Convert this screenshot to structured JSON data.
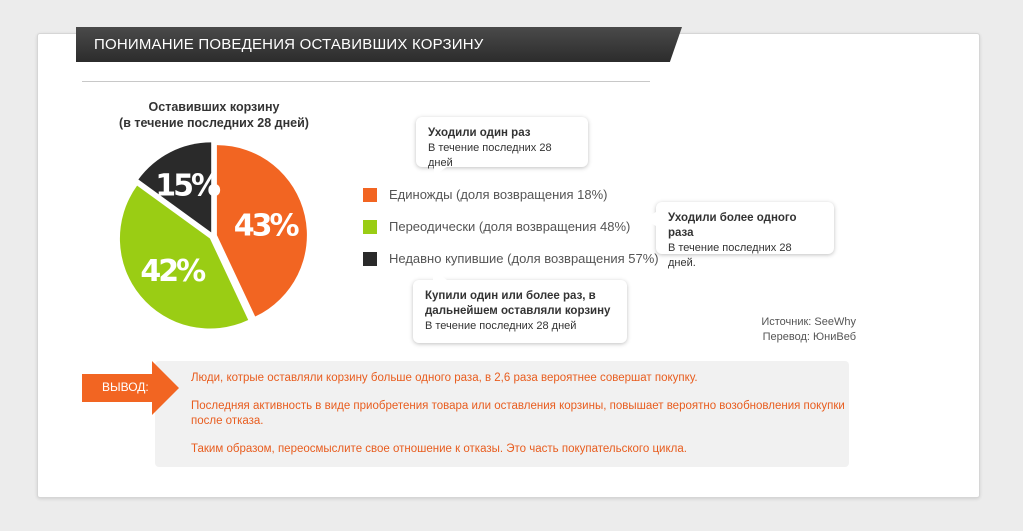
{
  "header": {
    "title": "ПОНИМАНИЕ ПОВЕДЕНИЯ ОСТАВИВШИХ КОРЗИНУ"
  },
  "chart_data": {
    "type": "pie",
    "title": "Оставивших корзину",
    "subtitle": "(в течение последних 28 дней)",
    "slices": [
      {
        "name": "Единожды (доля возвращения 18%)",
        "value": 43,
        "label": "43%",
        "color": "#f26522"
      },
      {
        "name": "Переодически (доля возвращения 48%)",
        "value": 42,
        "label": "42%",
        "color": "#9acd14"
      },
      {
        "name": "Недавно купившие (доля возвращения 57%)",
        "value": 15,
        "label": "15%",
        "color": "#2a2a2a"
      }
    ],
    "legend_position": "right"
  },
  "callouts": [
    {
      "title": "Уходили один раз",
      "text": "В течение последних 28 дней"
    },
    {
      "title": "Уходили более одного раза",
      "text": "В течение последних 28 дней."
    },
    {
      "title": "Купили один или более раз, в дальнейшем оставляли корзину",
      "text": "В течение последних 28 дней"
    }
  ],
  "source": {
    "line1": "Источник: SeeWhy",
    "line2": "Перевод: ЮниВеб"
  },
  "conclusion": {
    "label": "ВЫВОД:",
    "color": "#f26522",
    "paragraphs": [
      "Люди, котрые оставляли корзину больше одного раза, в 2,6 раза вероятнее совершат покупку.",
      "Последняя активность в виде приобретения товара или оставления корзины, повышает вероятно возобновления покупки после отказа.",
      "Таким образом, переосмыслите свое отношение к отказы. Это часть покупательского цикла."
    ]
  }
}
